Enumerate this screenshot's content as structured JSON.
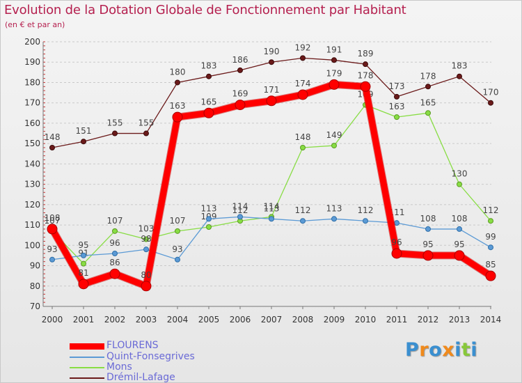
{
  "title": "Evolution de la Dotation Globale de Fonctionnement par Habitant",
  "subtitle": "(en € et par an)",
  "colors": {
    "title": "#b5204f",
    "flourens": "#ff0000",
    "quint": "#5b9ad5",
    "mons": "#88dd44",
    "dremil": "#6b1a1a",
    "axis_text": "#333333"
  },
  "chart_data": {
    "type": "line",
    "title": "Evolution de la Dotation Globale de Fonctionnement par Habitant",
    "subtitle": "(en € et par an)",
    "xlabel": "",
    "ylabel": "",
    "ylim": [
      70,
      200
    ],
    "yticks": [
      70,
      80,
      90,
      100,
      110,
      120,
      130,
      140,
      150,
      160,
      170,
      180,
      190,
      200
    ],
    "categories": [
      "2000",
      "2001",
      "2002",
      "2003",
      "2004",
      "2005",
      "2006",
      "2007",
      "2008",
      "2009",
      "2010",
      "2011",
      "2012",
      "2013",
      "2014"
    ],
    "grid": "horizontal dashed",
    "legend_position": "bottom-left",
    "series": [
      {
        "name": "Drémil-Lafage",
        "key": "dremil",
        "values": [
          148,
          151,
          155,
          155,
          180,
          183,
          186,
          190,
          192,
          191,
          189,
          173,
          178,
          183,
          170
        ]
      },
      {
        "name": "Mons",
        "key": "mons",
        "values": [
          107,
          91,
          107,
          103,
          107,
          109,
          112,
          114,
          148,
          149,
          169,
          163,
          165,
          130,
          112
        ]
      },
      {
        "name": "Quint-Fonsegrives",
        "key": "quint",
        "values": [
          93,
          95,
          96,
          98,
          93,
          113,
          114,
          113,
          112,
          113,
          112,
          111,
          108,
          108,
          99
        ]
      },
      {
        "name": "FLOURENS",
        "key": "flourens",
        "values": [
          108,
          81,
          86,
          80,
          163,
          165,
          169,
          171,
          174,
          179,
          178,
          96,
          95,
          95,
          85
        ]
      }
    ]
  },
  "legend": [
    {
      "name": "FLOURENS",
      "key": "flourens"
    },
    {
      "name": "Quint-Fonsegrives",
      "key": "quint"
    },
    {
      "name": "Mons",
      "key": "mons"
    },
    {
      "name": "Drémil-Lafage",
      "key": "dremil"
    }
  ],
  "logo": {
    "letters": [
      "P",
      "r",
      "o",
      "x",
      "i",
      "t",
      "i"
    ],
    "colors": [
      "#3a8fd0",
      "#f08a1c",
      "#3a8fd0",
      "#f08a1c",
      "#3a8fd0",
      "#88c83a",
      "#3a8fd0"
    ]
  }
}
